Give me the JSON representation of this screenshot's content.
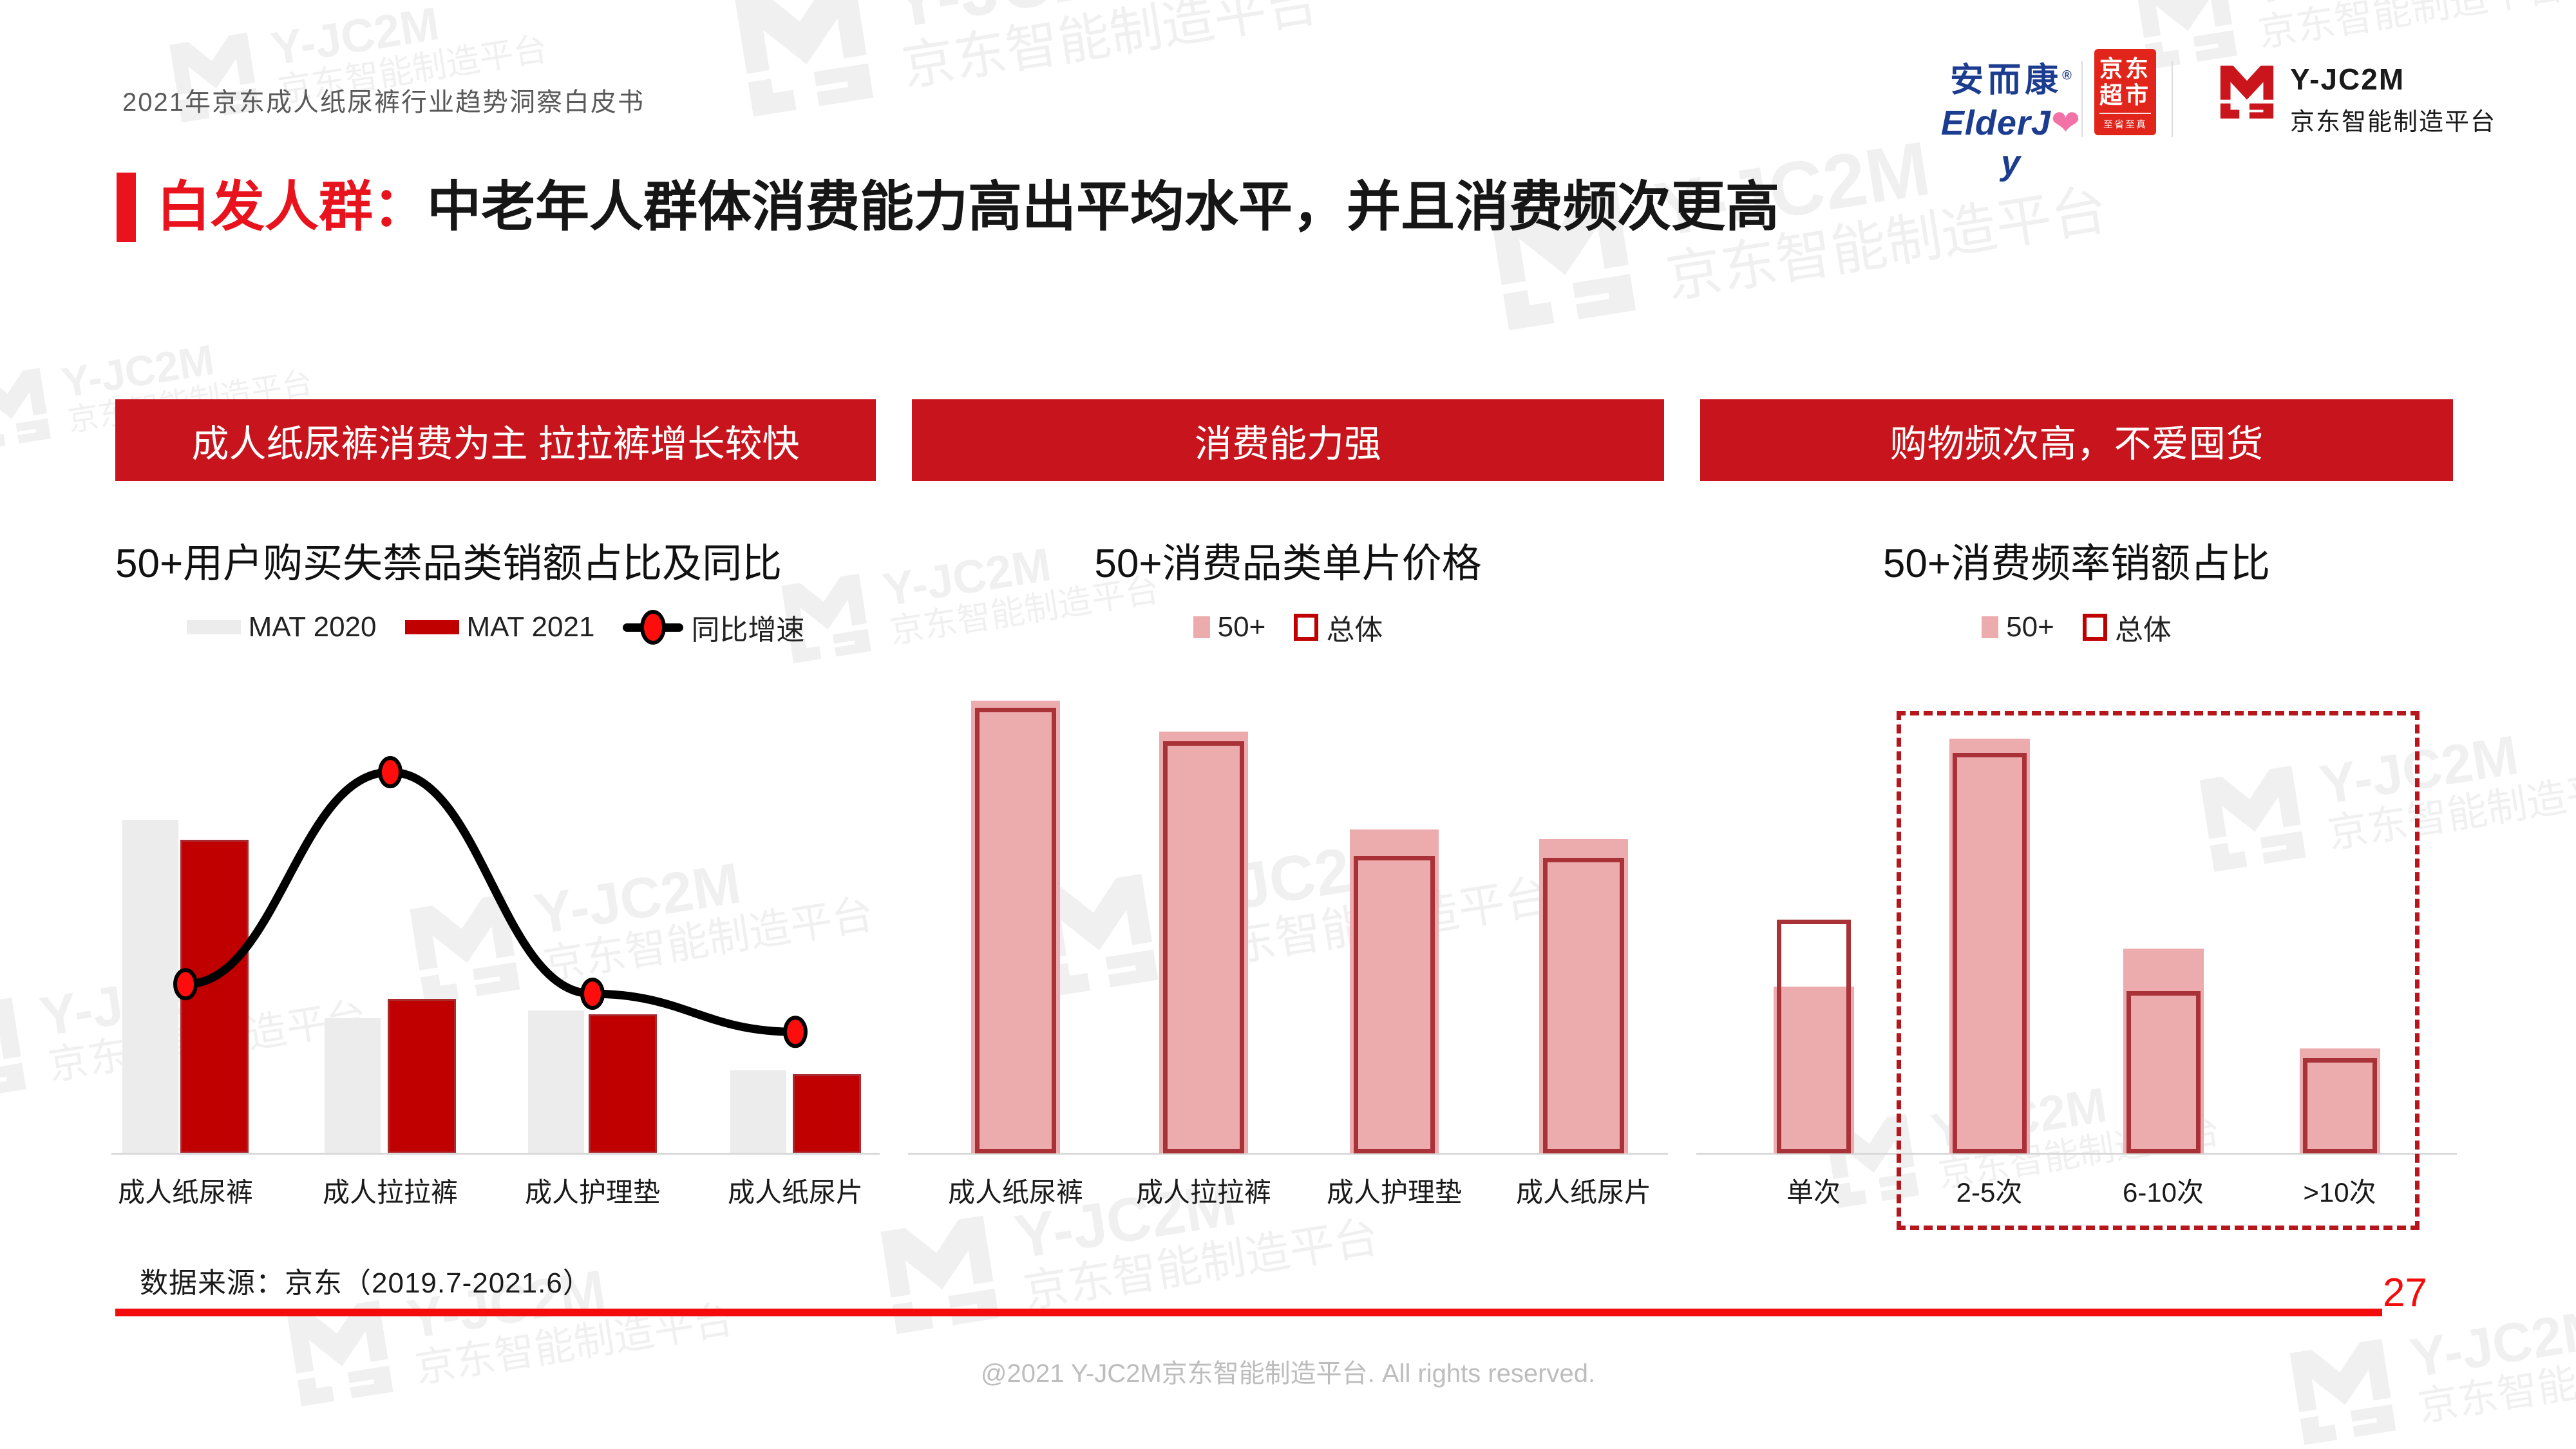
{
  "page": {
    "doc_title": "2021年京东成人纸尿裤行业趋势洞察白皮书",
    "page_number": "27",
    "source_note": "数据来源：京东（2019.7-2021.6）",
    "copyright": "@2021 Y-JC2M京东智能制造平台. All rights reserved."
  },
  "header_logos": {
    "elderjoy": {
      "cn": "安而康",
      "reg": "®",
      "en_prefix": "ElderJ",
      "heart": "❤",
      "en_suffix": "y"
    },
    "jd_supermarket": {
      "line1": "京东",
      "line2": "超市",
      "tagline": "至省至真"
    },
    "yjc2m": {
      "name": "Y-JC2M",
      "subtitle": "京东智能制造平台"
    }
  },
  "heading": {
    "prefix": "白发人群：",
    "text": "中老年人群体消费能力高出平均水平，并且消费频次更高"
  },
  "watermark": {
    "line1": "Y-JC2M",
    "line2": "京东智能制造平台"
  },
  "sections": [
    {
      "banner": "成人纸尿裤消费为主 拉拉裤增长较快"
    },
    {
      "banner": "消费能力强"
    },
    {
      "banner": "购物频次高，不爱囤货"
    }
  ],
  "chart_data": [
    {
      "type": "bar+line",
      "title": "50+用户购买失禁品类销额占比及同比",
      "categories": [
        "成人纸尿裤",
        "成人拉拉裤",
        "成人护理垫",
        "成人纸尿片"
      ],
      "series": [
        {
          "name": "MAT 2020",
          "type": "bar",
          "color": "#ECECEC",
          "values": [
            42,
            17,
            18,
            10.5
          ]
        },
        {
          "name": "MAT 2021",
          "type": "bar",
          "color": "#C00000",
          "values": [
            39.5,
            19.5,
            17.5,
            10
          ]
        },
        {
          "name": "同比增速",
          "type": "line",
          "color": "#000000",
          "marker_color": "#FF0D0D",
          "values": [
            35.5,
            80,
            33.5,
            25.5
          ],
          "ylim": [
            0,
            100
          ]
        }
      ],
      "ylim": [
        0,
        60
      ],
      "value_unit": "%",
      "axis_tick_labels": "hidden",
      "legend_position": "top"
    },
    {
      "type": "bar",
      "title": "50+消费品类单片价格",
      "categories": [
        "成人纸尿裤",
        "成人拉拉裤",
        "成人护理垫",
        "成人纸尿片"
      ],
      "series": [
        {
          "name": "50+",
          "style": "filled",
          "color": "#ECABAC",
          "values": [
            1.9,
            1.77,
            1.36,
            1.32
          ]
        },
        {
          "name": "总体",
          "style": "outline",
          "color": "#A93239",
          "values": [
            1.87,
            1.73,
            1.25,
            1.24
          ]
        }
      ],
      "ylim": [
        0,
        2.0
      ],
      "axis_tick_labels": "hidden",
      "legend_position": "top"
    },
    {
      "type": "bar",
      "title": "50+消费频率销额占比",
      "categories": [
        "单次",
        "2-5次",
        "6-10次",
        ">10次"
      ],
      "series": [
        {
          "name": "50+",
          "style": "filled",
          "color": "#ECABAC",
          "values": [
            17.5,
            43.5,
            21.5,
            11
          ]
        },
        {
          "name": "总体",
          "style": "outline",
          "color": "#A93239",
          "values": [
            24.5,
            42,
            17,
            10
          ]
        }
      ],
      "ylim": [
        0,
        50
      ],
      "axis_tick_labels": "hidden",
      "legend_position": "top",
      "highlight_box": {
        "covers": [
          "2-5次",
          "6-10次",
          ">10次"
        ],
        "style": "dashed",
        "color": "#B5171C"
      }
    }
  ],
  "colors": {
    "banner_red": "#C8151D",
    "accent_red": "#E8131D",
    "footer_red": "#F40B0B",
    "bar_gray": "#ECECEC",
    "bar_red": "#C00000",
    "bar_pink": "#ECABAC",
    "bar_outline_red": "#A93239",
    "dashed_box_red": "#B5171C",
    "jd_badge_red": "#E1251B",
    "elderjoy_blue": "#1B3C8F",
    "heart_pink": "#F272A8",
    "baseline_gray": "#D9D9D9"
  }
}
